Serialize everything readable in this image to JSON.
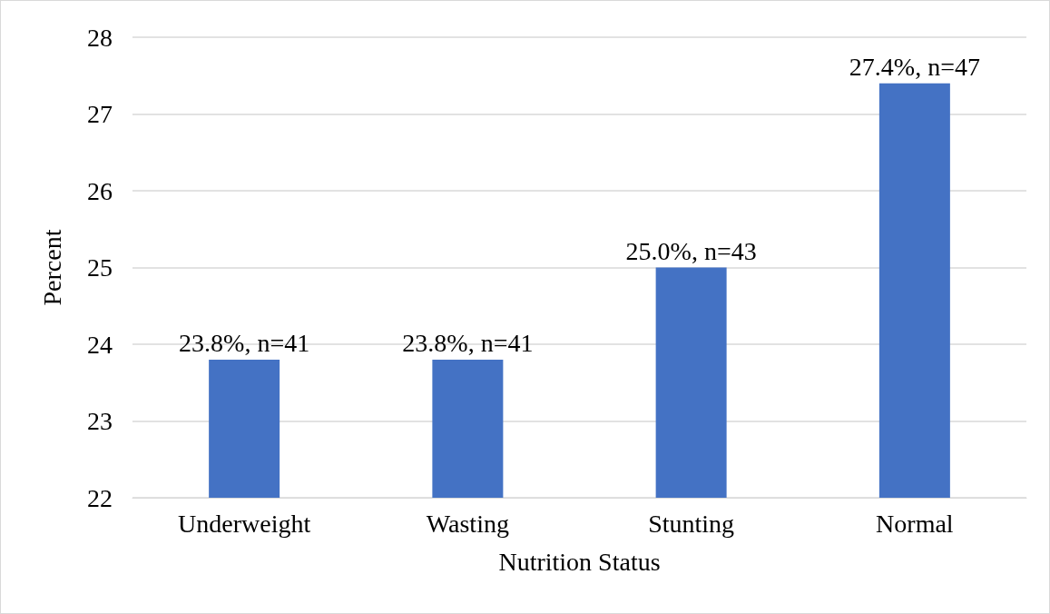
{
  "chart_data": {
    "type": "bar",
    "xlabel": "Nutrition Status",
    "ylabel": "Percent",
    "categories": [
      "Underweight",
      "Wasting",
      "Stunting",
      "Normal"
    ],
    "values": [
      23.8,
      23.8,
      25.0,
      27.4
    ],
    "value_labels": [
      "23.8%, n=41",
      "23.8%, n=41",
      "25.0%, n=43",
      "27.4%, n=47"
    ],
    "color": "#4472c4",
    "ylim": [
      22,
      28
    ],
    "yticks": [
      22,
      23,
      24,
      25,
      26,
      27,
      28
    ],
    "grid": "y"
  }
}
